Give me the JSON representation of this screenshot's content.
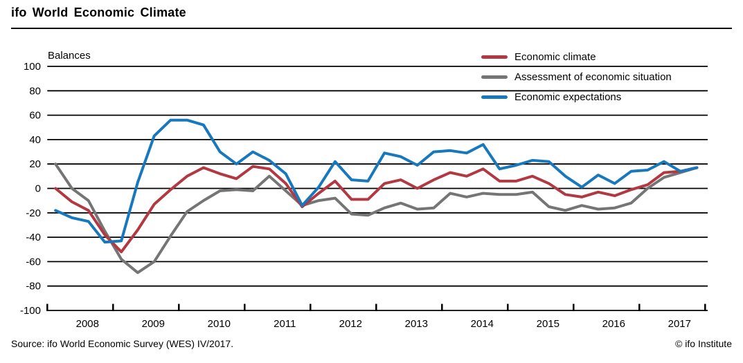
{
  "header": {
    "title": "ifo World Economic Climate"
  },
  "footer": {
    "source": "Source: ifo World Economic Survey (WES) IV/2017.",
    "copyright": "© ifo Institute"
  },
  "chart_data": {
    "type": "line",
    "title": "ifo World Economic Climate",
    "ylabel": "Balances",
    "ylim": [
      -100,
      100
    ],
    "ytick_step": 20,
    "grid": "horizontal",
    "legend_position": "top-right",
    "x_unit": "quarterly",
    "x_range": "2008Q1-2017Q4",
    "years": [
      2008,
      2009,
      2010,
      2011,
      2012,
      2013,
      2014,
      2015,
      2016,
      2017
    ],
    "series": [
      {
        "name": "Economic climate",
        "color": "#b23842",
        "values": [
          0,
          -11,
          -18,
          -38,
          -52,
          -34,
          -13,
          -1,
          10,
          17,
          12,
          8,
          18,
          16,
          4,
          -15,
          -4,
          6,
          -9,
          -9,
          4,
          7,
          0,
          7,
          13,
          10,
          16,
          6,
          6,
          10,
          4,
          -5,
          -7,
          -3,
          -6,
          -1,
          3,
          13,
          14,
          17
        ]
      },
      {
        "name": "Assessment of economic situation",
        "color": "#757575",
        "values": [
          20,
          0,
          -10,
          -35,
          -58,
          -69,
          -60,
          -39,
          -19,
          -10,
          -2,
          -1,
          -2,
          10,
          -2,
          -14,
          -10,
          -8,
          -21,
          -22,
          -16,
          -12,
          -17,
          -16,
          -4,
          -7,
          -4,
          -5,
          -5,
          -3,
          -15,
          -18,
          -14,
          -17,
          -16,
          -12,
          0,
          9,
          13,
          17
        ]
      },
      {
        "name": "Economic expectations",
        "color": "#1878bd",
        "values": [
          -18,
          -24,
          -27,
          -44,
          -43,
          5,
          43,
          56,
          56,
          52,
          30,
          20,
          30,
          23,
          12,
          -14,
          1,
          22,
          7,
          6,
          29,
          26,
          19,
          30,
          31,
          29,
          36,
          16,
          19,
          23,
          22,
          10,
          1,
          11,
          4,
          14,
          15,
          22,
          14,
          17
        ]
      }
    ]
  }
}
